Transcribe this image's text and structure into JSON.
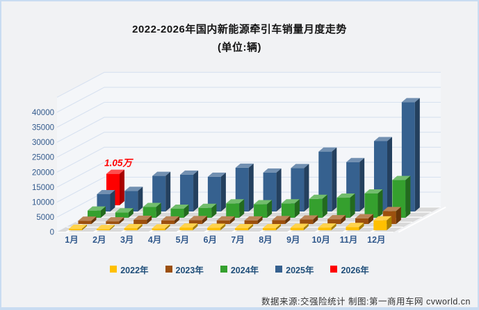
{
  "page": {
    "background": "#F1F2F4",
    "border_color": "#C9DCF1"
  },
  "title": {
    "line1": "2022-2026年国内新能源牵引车销量月度走势",
    "line2": "(单位:辆)"
  },
  "chart_data": {
    "type": "bar",
    "projection": "3d-column",
    "title": "2022-2026年国内新能源牵引车销量月度走势(单位:辆)",
    "categories": [
      "1月",
      "2月",
      "3月",
      "4月",
      "5月",
      "6月",
      "7月",
      "8月",
      "9月",
      "10月",
      "11月",
      "12月"
    ],
    "series": [
      {
        "name": "2022年",
        "color": "#FFC000",
        "values": [
          500,
          400,
          700,
          600,
          900,
          800,
          700,
          700,
          800,
          900,
          1100,
          3300
        ]
      },
      {
        "name": "2023年",
        "color": "#9C500F",
        "values": [
          1100,
          900,
          1400,
          1200,
          1300,
          1200,
          1200,
          1300,
          1500,
          1600,
          1900,
          4300
        ]
      },
      {
        "name": "2024年",
        "color": "#35A02E",
        "values": [
          2400,
          1800,
          3600,
          3000,
          3300,
          4800,
          4500,
          4800,
          6300,
          6700,
          8100,
          12600
        ]
      },
      {
        "name": "2025年",
        "color": "#36618F",
        "values": [
          5800,
          6900,
          11900,
          12300,
          11600,
          14600,
          13000,
          14500,
          20000,
          16500,
          23500,
          36500
        ]
      },
      {
        "name": "2026年",
        "color": "#FE0000",
        "values": [
          10500,
          null,
          null,
          null,
          null,
          null,
          null,
          null,
          null,
          null,
          null,
          null
        ]
      }
    ],
    "yticks": [
      0,
      5000,
      10000,
      15000,
      20000,
      25000,
      30000,
      35000,
      40000
    ],
    "ylim": [
      0,
      40000
    ],
    "xlabel": "",
    "ylabel": "",
    "grid": true,
    "legend_position": "bottom",
    "axis_text_color": "#31598C",
    "gridline_color": "#D7E1F0",
    "floor_color": "#D9D9D9",
    "wall_color": "#F4F6F9",
    "annotation": {
      "text": "1.05万",
      "series": "2026年",
      "category": "1月",
      "value": 10500,
      "color": "#FF0000"
    }
  },
  "footer": {
    "text": "数据来源:交强险统计 制图:第一商用车网 cvworld.cn"
  }
}
